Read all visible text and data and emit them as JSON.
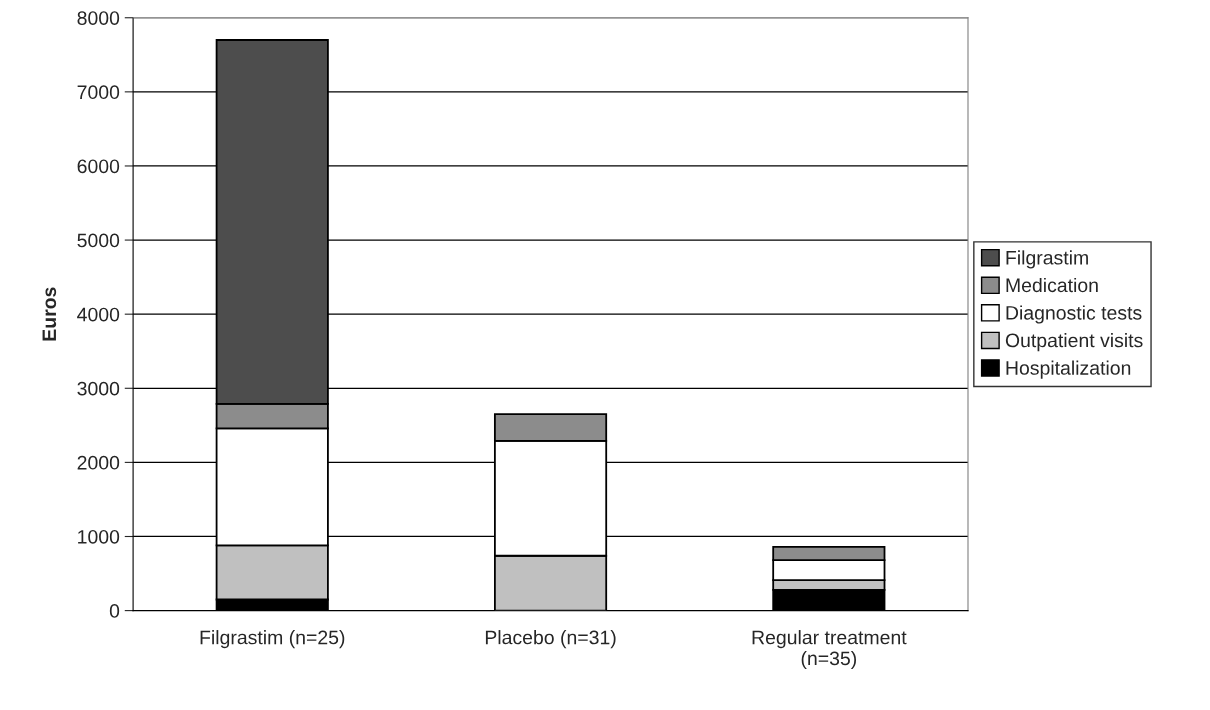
{
  "chart_data": {
    "type": "bar",
    "stacked": true,
    "ylabel": "Euros",
    "categories": [
      "Filgrastim (n=25)",
      "Placebo (n=31)",
      "Regular treatment\n(n=35)"
    ],
    "series": [
      {
        "name": "Hospitalization",
        "color": "#000000",
        "values": [
          150,
          0,
          280
        ]
      },
      {
        "name": "Outpatient visits",
        "color": "#c0c0c0",
        "values": [
          730,
          740,
          130
        ]
      },
      {
        "name": "Diagnostic tests",
        "color": "#ffffff",
        "values": [
          1580,
          1550,
          270
        ]
      },
      {
        "name": "Medication",
        "color": "#8c8c8c",
        "values": [
          330,
          360,
          180
        ]
      },
      {
        "name": "Filgrastim",
        "color": "#4d4d4d",
        "values": [
          4910,
          0,
          0
        ]
      }
    ],
    "ylim": [
      0,
      8000
    ],
    "yticks": [
      0,
      1000,
      2000,
      3000,
      4000,
      5000,
      6000,
      7000,
      8000
    ],
    "grid": "y",
    "legend": "right"
  }
}
